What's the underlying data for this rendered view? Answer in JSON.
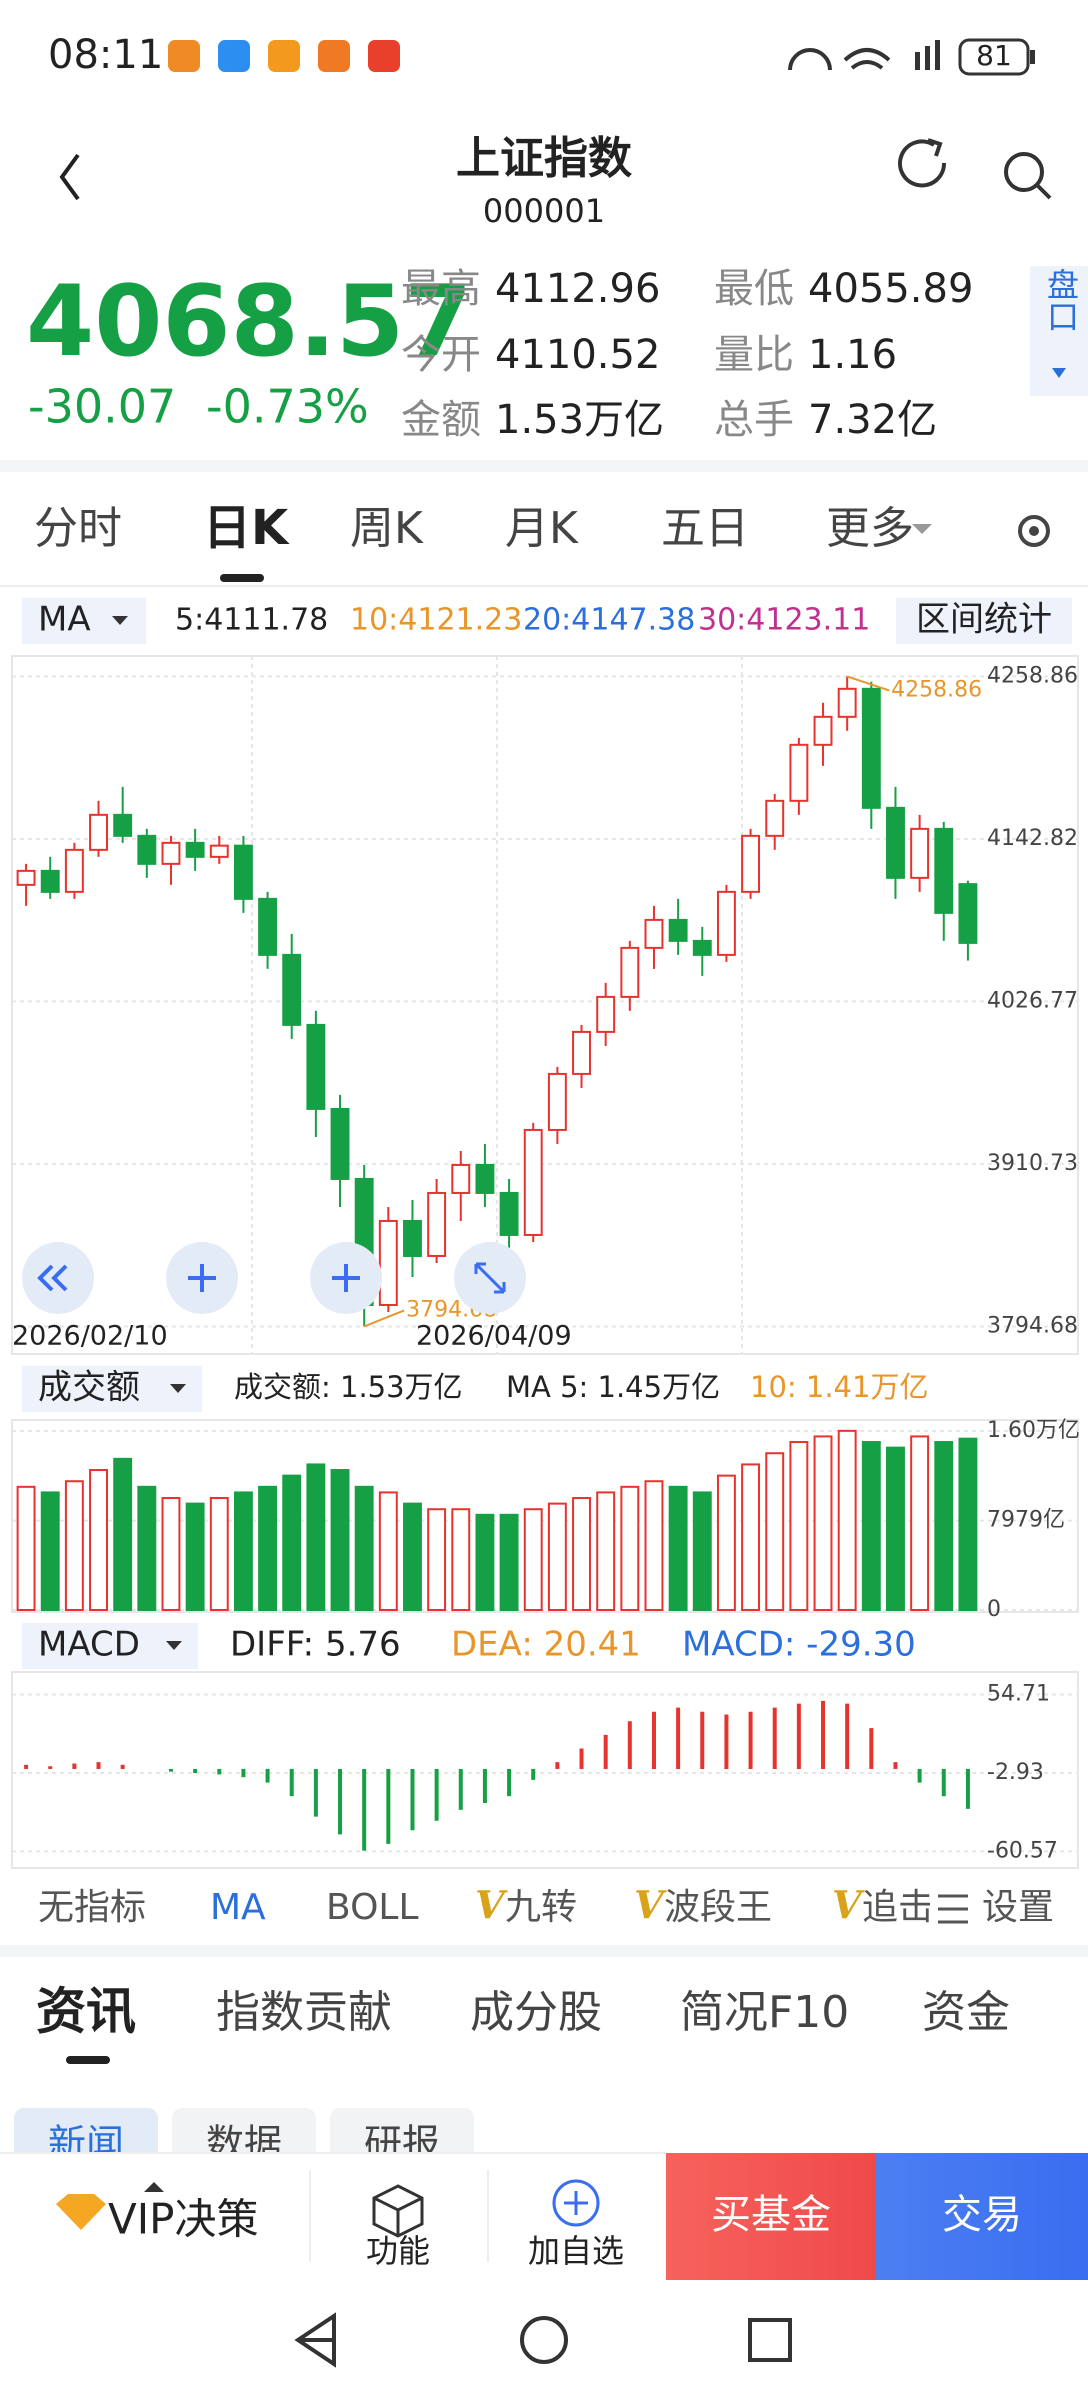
{
  "status_bar": {
    "time": "08:11",
    "battery": "81"
  },
  "header": {
    "title": "上证指数",
    "code": "000001"
  },
  "quote": {
    "price": "4068.57",
    "change": "-30.07",
    "change_pct": "-0.73%",
    "stats": [
      {
        "label": "最高",
        "value": "4112.96"
      },
      {
        "label": "最低",
        "value": "4055.89"
      },
      {
        "label": "今开",
        "value": "4110.52"
      },
      {
        "label": "量比",
        "value": "1.16"
      },
      {
        "label": "金额",
        "value": "1.53万亿"
      },
      {
        "label": "总手",
        "value": "7.32亿"
      }
    ],
    "side_tab": "盘口"
  },
  "period_tabs": [
    "分时",
    "日K",
    "周K",
    "月K",
    "五日",
    "更多"
  ],
  "ma_legend": {
    "selector": "MA",
    "items": [
      "5:4111.78",
      "10:4121.23",
      "20:4147.38",
      "30:4123.11"
    ],
    "range_stats": "区间统计"
  },
  "kline": {
    "ylim": [
      3775,
      4272
    ],
    "yticks": [
      4258.86,
      4142.82,
      4026.77,
      3910.73,
      3794.68
    ],
    "x_labels": [
      "2026/02/10",
      "2026/04/09"
    ],
    "max_label": 4258.86,
    "min_label": 3794.68,
    "colors": {
      "up": "#e8322d",
      "down": "#16a045"
    },
    "candles": [
      [
        4110,
        4125,
        4095,
        4120
      ],
      [
        4120,
        4130,
        4100,
        4105
      ],
      [
        4105,
        4140,
        4100,
        4135
      ],
      [
        4135,
        4170,
        4130,
        4160
      ],
      [
        4160,
        4180,
        4140,
        4145
      ],
      [
        4145,
        4150,
        4115,
        4125
      ],
      [
        4125,
        4145,
        4110,
        4140
      ],
      [
        4140,
        4150,
        4120,
        4130
      ],
      [
        4130,
        4145,
        4125,
        4138
      ],
      [
        4138,
        4145,
        4090,
        4100
      ],
      [
        4100,
        4105,
        4050,
        4060
      ],
      [
        4060,
        4075,
        4000,
        4010
      ],
      [
        4010,
        4020,
        3930,
        3950
      ],
      [
        3950,
        3960,
        3880,
        3900
      ],
      [
        3900,
        3910,
        3794.68,
        3810
      ],
      [
        3810,
        3880,
        3805,
        3870
      ],
      [
        3870,
        3885,
        3830,
        3845
      ],
      [
        3845,
        3900,
        3840,
        3890
      ],
      [
        3890,
        3920,
        3870,
        3910
      ],
      [
        3910,
        3925,
        3880,
        3890
      ],
      [
        3890,
        3900,
        3850,
        3860
      ],
      [
        3860,
        3940,
        3855,
        3935
      ],
      [
        3935,
        3980,
        3925,
        3975
      ],
      [
        3975,
        4010,
        3965,
        4005
      ],
      [
        4005,
        4040,
        3995,
        4030
      ],
      [
        4030,
        4070,
        4020,
        4065
      ],
      [
        4065,
        4095,
        4050,
        4085
      ],
      [
        4085,
        4100,
        4060,
        4070
      ],
      [
        4070,
        4080,
        4045,
        4060
      ],
      [
        4060,
        4110,
        4055,
        4105
      ],
      [
        4105,
        4150,
        4100,
        4145
      ],
      [
        4145,
        4175,
        4135,
        4170
      ],
      [
        4170,
        4215,
        4160,
        4210
      ],
      [
        4210,
        4240,
        4195,
        4230
      ],
      [
        4230,
        4258.86,
        4220,
        4250
      ],
      [
        4250,
        4255,
        4150,
        4165
      ],
      [
        4165,
        4180,
        4100,
        4115
      ],
      [
        4115,
        4160,
        4105,
        4150
      ],
      [
        4150,
        4155,
        4070,
        4090
      ],
      [
        4110.52,
        4112.96,
        4055.89,
        4068.57
      ]
    ]
  },
  "volume": {
    "selector": "成交额",
    "legend": [
      "成交额: 1.53万亿",
      "MA 5: 1.45万亿",
      "10: 1.41万亿"
    ],
    "ylim": [
      0,
      16700
    ],
    "yticks": [
      {
        "value": 16000,
        "label": "1.60万亿"
      },
      {
        "value": 7979,
        "label": "7979亿"
      },
      0
    ],
    "values": [
      11000,
      10500,
      11500,
      12500,
      13500,
      11000,
      10000,
      9500,
      10000,
      10500,
      11000,
      12000,
      13000,
      12500,
      11000,
      10500,
      9500,
      9000,
      9000,
      8500,
      8500,
      9000,
      9500,
      10000,
      10500,
      11000,
      11500,
      11000,
      10500,
      12000,
      13000,
      14000,
      15000,
      15500,
      16000,
      15000,
      14500,
      15500,
      15000,
      15300
    ]
  },
  "macd": {
    "selector": "MACD",
    "legend": [
      "DIFF: 5.76",
      "DEA: 20.41",
      "MACD: -29.30"
    ],
    "ylim": [
      -72,
      69
    ],
    "yticks": [
      54.71,
      -2.93,
      -60.57
    ],
    "values": [
      3,
      2,
      4,
      5,
      3,
      0,
      -2,
      -3,
      -4,
      -6,
      -10,
      -20,
      -35,
      -48,
      -60,
      -55,
      -45,
      -38,
      -30,
      -25,
      -20,
      -8,
      5,
      15,
      25,
      35,
      42,
      45,
      42,
      40,
      42,
      45,
      48,
      50,
      48,
      30,
      5,
      -10,
      -20,
      -29.3
    ]
  },
  "indicators": [
    {
      "label": "无指标"
    },
    {
      "label": "MA"
    },
    {
      "label": "BOLL"
    },
    {
      "badge": "V",
      "label": "九转"
    },
    {
      "badge": "V",
      "label": "波段王"
    },
    {
      "badge": "V",
      "label": "追击"
    },
    {
      "label": "设置"
    }
  ],
  "info_tabs": [
    "资讯",
    "指数贡献",
    "成分股",
    "简况F10",
    "资金"
  ],
  "sub_tabs": [
    "新闻",
    "数据",
    "研报"
  ],
  "bottom_bar": {
    "vip": "VIP决策",
    "func": "功能",
    "add": "加自选",
    "buy_fund": "买基金",
    "trade": "交易"
  }
}
